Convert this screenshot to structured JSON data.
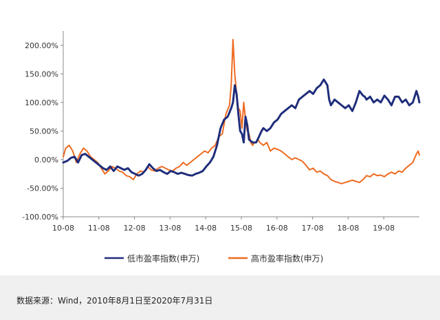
{
  "chart_data": {
    "type": "line",
    "title": "",
    "xlabel": "",
    "ylabel": "",
    "ylim": [
      -100,
      225
    ],
    "yticks": [
      -100,
      -50,
      0,
      50,
      100,
      150,
      200
    ],
    "ytick_labels": [
      "-100.00%",
      "-50.00%",
      "0.00%",
      "50.00%",
      "100.00%",
      "150.00%",
      "200.00%"
    ],
    "xlim": [
      2010.583,
      2020.583
    ],
    "xticks": [
      2010.583,
      2011.583,
      2012.583,
      2013.583,
      2014.583,
      2015.583,
      2016.583,
      2017.583,
      2018.583,
      2019.583
    ],
    "xtick_labels": [
      "10-08",
      "11-08",
      "12-08",
      "13-08",
      "14-08",
      "15-08",
      "16-08",
      "17-08",
      "18-08",
      "19-08"
    ],
    "grid": false,
    "legend_position": "bottom",
    "series": [
      {
        "name": "低市盈率指数(申万)",
        "color": "#1f2d7a",
        "x": [
          2010.583,
          2010.7,
          2010.8,
          2010.9,
          2011.0,
          2011.1,
          2011.2,
          2011.3,
          2011.4,
          2011.5,
          2011.6,
          2011.7,
          2011.8,
          2011.9,
          2012.0,
          2012.1,
          2012.2,
          2012.3,
          2012.4,
          2012.5,
          2012.6,
          2012.7,
          2012.8,
          2012.9,
          2013.0,
          2013.1,
          2013.2,
          2013.3,
          2013.4,
          2013.5,
          2013.6,
          2013.7,
          2013.8,
          2013.9,
          2014.0,
          2014.1,
          2014.2,
          2014.3,
          2014.4,
          2014.5,
          2014.6,
          2014.7,
          2014.8,
          2014.9,
          2015.0,
          2015.1,
          2015.2,
          2015.3,
          2015.35,
          2015.4,
          2015.45,
          2015.5,
          2015.55,
          2015.6,
          2015.65,
          2015.7,
          2015.75,
          2015.8,
          2015.9,
          2016.0,
          2016.08,
          2016.15,
          2016.2,
          2016.3,
          2016.4,
          2016.5,
          2016.6,
          2016.7,
          2016.8,
          2016.9,
          2017.0,
          2017.1,
          2017.2,
          2017.3,
          2017.4,
          2017.5,
          2017.6,
          2017.7,
          2017.8,
          2017.9,
          2018.0,
          2018.05,
          2018.1,
          2018.2,
          2018.3,
          2018.4,
          2018.5,
          2018.6,
          2018.7,
          2018.8,
          2018.9,
          2019.0,
          2019.05,
          2019.1,
          2019.2,
          2019.3,
          2019.4,
          2019.5,
          2019.6,
          2019.7,
          2019.8,
          2019.9,
          2020.0,
          2020.1,
          2020.2,
          2020.3,
          2020.4,
          2020.5,
          2020.55,
          2020.583
        ],
        "values": [
          -5,
          -2,
          3,
          5,
          -5,
          8,
          10,
          5,
          0,
          -5,
          -10,
          -15,
          -18,
          -12,
          -20,
          -12,
          -15,
          -18,
          -15,
          -22,
          -25,
          -28,
          -25,
          -18,
          -8,
          -15,
          -20,
          -18,
          -22,
          -25,
          -20,
          -22,
          -25,
          -23,
          -25,
          -27,
          -28,
          -25,
          -23,
          -20,
          -12,
          -5,
          5,
          25,
          55,
          70,
          75,
          90,
          100,
          130,
          115,
          80,
          50,
          45,
          30,
          75,
          60,
          35,
          30,
          30,
          40,
          50,
          55,
          50,
          55,
          65,
          70,
          80,
          85,
          90,
          95,
          90,
          105,
          110,
          115,
          120,
          115,
          125,
          130,
          140,
          130,
          105,
          95,
          105,
          100,
          95,
          90,
          95,
          85,
          100,
          120,
          112,
          110,
          105,
          110,
          100,
          105,
          100,
          112,
          105,
          95,
          110,
          110,
          100,
          105,
          95,
          100,
          120,
          110,
          100
        ]
      },
      {
        "name": "高市盈率指数(申万)",
        "color": "#ee6a1f",
        "x": [
          2010.583,
          2010.65,
          2010.75,
          2010.85,
          2010.95,
          2011.05,
          2011.15,
          2011.25,
          2011.35,
          2011.45,
          2011.55,
          2011.65,
          2011.75,
          2011.85,
          2011.95,
          2012.05,
          2012.15,
          2012.25,
          2012.35,
          2012.45,
          2012.55,
          2012.65,
          2012.75,
          2012.85,
          2012.95,
          2013.05,
          2013.15,
          2013.25,
          2013.35,
          2013.45,
          2013.55,
          2013.65,
          2013.75,
          2013.85,
          2013.95,
          2014.05,
          2014.15,
          2014.25,
          2014.35,
          2014.45,
          2014.55,
          2014.65,
          2014.75,
          2014.85,
          2014.95,
          2015.05,
          2015.15,
          2015.25,
          2015.3,
          2015.35,
          2015.4,
          2015.45,
          2015.5,
          2015.55,
          2015.6,
          2015.65,
          2015.7,
          2015.75,
          2015.8,
          2015.85,
          2015.9,
          2015.95,
          2016.0,
          2016.05,
          2016.1,
          2016.2,
          2016.3,
          2016.4,
          2016.5,
          2016.6,
          2016.7,
          2016.8,
          2016.9,
          2017.0,
          2017.1,
          2017.2,
          2017.3,
          2017.4,
          2017.5,
          2017.6,
          2017.7,
          2017.8,
          2017.9,
          2018.0,
          2018.1,
          2018.2,
          2018.3,
          2018.4,
          2018.5,
          2018.6,
          2018.7,
          2018.8,
          2018.9,
          2019.0,
          2019.1,
          2019.2,
          2019.3,
          2019.4,
          2019.5,
          2019.6,
          2019.7,
          2019.8,
          2019.9,
          2020.0,
          2020.1,
          2020.2,
          2020.3,
          2020.4,
          2020.5,
          2020.55,
          2020.583
        ],
        "values": [
          5,
          20,
          25,
          15,
          -5,
          10,
          20,
          15,
          5,
          0,
          -5,
          -15,
          -25,
          -20,
          -12,
          -15,
          -20,
          -22,
          -28,
          -30,
          -35,
          -25,
          -20,
          -22,
          -12,
          -18,
          -20,
          -15,
          -12,
          -15,
          -18,
          -20,
          -15,
          -12,
          -5,
          -10,
          -5,
          0,
          5,
          10,
          15,
          12,
          20,
          25,
          40,
          45,
          80,
          95,
          130,
          210,
          150,
          115,
          90,
          85,
          55,
          100,
          70,
          50,
          45,
          30,
          25,
          30,
          30,
          35,
          30,
          25,
          30,
          15,
          20,
          18,
          15,
          10,
          5,
          0,
          3,
          0,
          -3,
          -10,
          -18,
          -15,
          -22,
          -20,
          -25,
          -28,
          -35,
          -38,
          -40,
          -42,
          -40,
          -38,
          -36,
          -38,
          -40,
          -35,
          -28,
          -30,
          -25,
          -28,
          -27,
          -30,
          -25,
          -22,
          -25,
          -20,
          -22,
          -15,
          -10,
          -5,
          10,
          15,
          8
        ]
      }
    ]
  },
  "source": {
    "text": "数据来源：Wind，2010年8月1日至2020年7月31日"
  }
}
